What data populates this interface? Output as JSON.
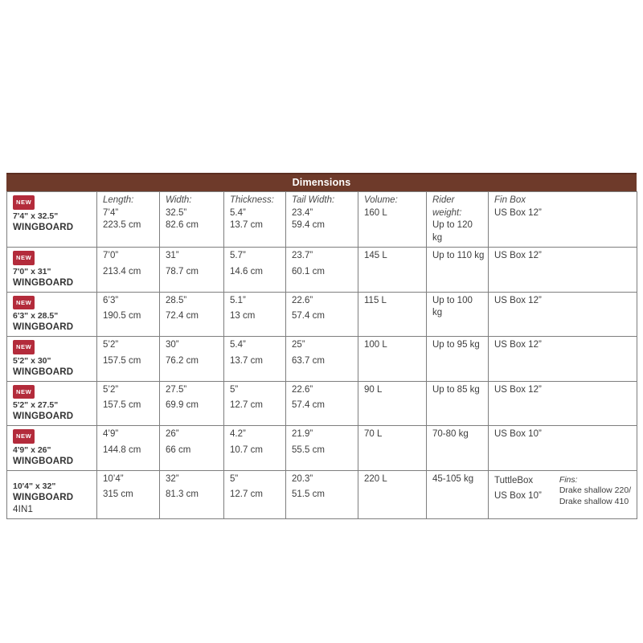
{
  "table": {
    "title": "Dimensions",
    "badge_label": "NEW",
    "columns": {
      "length": "Length:",
      "width": "Width:",
      "thickness": "Thickness:",
      "tail_width": "Tail Width:",
      "volume": "Volume:",
      "rider_weight": "Rider weight:",
      "fin_box": "Fin Box"
    },
    "rows": [
      {
        "is_new": true,
        "size": "7'4\" x 32.5\"",
        "model": "WINGBOARD",
        "model_suffix": "",
        "length_in": "7’4”",
        "length_cm": "223.5 cm",
        "width_in": "32.5”",
        "width_cm": "82.6 cm",
        "thickness_in": "5.4”",
        "thickness_cm": "13.7 cm",
        "tail_in": "23.4”",
        "tail_cm": "59.4 cm",
        "volume": "160 L",
        "rider_weight": "Up to 120 kg",
        "fin_box": [
          "US Box 12”"
        ]
      },
      {
        "is_new": true,
        "size": "7'0\" x 31\"",
        "model": "WINGBOARD",
        "model_suffix": "",
        "length_in": "7’0”",
        "length_cm": "213.4 cm",
        "width_in": "31”",
        "width_cm": "78.7 cm",
        "thickness_in": "5.7”",
        "thickness_cm": "14.6 cm",
        "tail_in": "23.7”",
        "tail_cm": "60.1 cm",
        "volume": "145 L",
        "rider_weight": "Up to 110 kg",
        "fin_box": [
          "US Box 12”"
        ]
      },
      {
        "is_new": true,
        "size": "6'3\" x 28.5\"",
        "model": "WINGBOARD",
        "model_suffix": "",
        "length_in": "6’3”",
        "length_cm": "190.5 cm",
        "width_in": "28.5”",
        "width_cm": "72.4 cm",
        "thickness_in": "5.1”",
        "thickness_cm": "13 cm",
        "tail_in": "22.6”",
        "tail_cm": "57.4 cm",
        "volume": "115 L",
        "rider_weight": "Up to 100 kg",
        "fin_box": [
          "US Box 12”"
        ]
      },
      {
        "is_new": true,
        "size": "5'2\" x 30\"",
        "model": "WINGBOARD",
        "model_suffix": "",
        "length_in": "5’2”",
        "length_cm": "157.5 cm",
        "width_in": "30”",
        "width_cm": "76.2 cm",
        "thickness_in": "5.4”",
        "thickness_cm": "13.7 cm",
        "tail_in": "25”",
        "tail_cm": "63.7 cm",
        "volume": "100 L",
        "rider_weight": "Up to 95 kg",
        "fin_box": [
          "US Box 12”"
        ]
      },
      {
        "is_new": true,
        "size": "5'2\" x 27.5\"",
        "model": "WINGBOARD",
        "model_suffix": "",
        "length_in": "5’2”",
        "length_cm": "157.5 cm",
        "width_in": "27.5”",
        "width_cm": "69.9 cm",
        "thickness_in": "5”",
        "thickness_cm": "12.7 cm",
        "tail_in": "22.6”",
        "tail_cm": "57.4 cm",
        "volume": "90 L",
        "rider_weight": "Up to 85 kg",
        "fin_box": [
          "US Box 12”"
        ]
      },
      {
        "is_new": true,
        "size": "4'9\" x 26\"",
        "model": "WINGBOARD",
        "model_suffix": "",
        "length_in": "4’9”",
        "length_cm": "144.8 cm",
        "width_in": "26”",
        "width_cm": "66 cm",
        "thickness_in": "4.2”",
        "thickness_cm": "10.7 cm",
        "tail_in": "21.9”",
        "tail_cm": "55.5 cm",
        "volume": "70 L",
        "rider_weight": "70-80 kg",
        "fin_box": [
          "US Box 10”"
        ]
      },
      {
        "is_new": false,
        "size": "10'4\" x 32\"",
        "model": "WINGBOARD",
        "model_suffix": "4IN1",
        "length_in": "10’4”",
        "length_cm": "315 cm",
        "width_in": "32”",
        "width_cm": "81.3 cm",
        "thickness_in": "5”",
        "thickness_cm": "12.7 cm",
        "tail_in": "20.3”",
        "tail_cm": "51.5 cm",
        "volume": "220 L",
        "rider_weight": "45-105 kg",
        "fin_box": [
          "TuttleBox",
          "US Box 10”"
        ],
        "fins": {
          "label": "Fins:",
          "lines": [
            "Drake shallow 220/",
            "Drake shallow 410"
          ]
        }
      }
    ],
    "colors": {
      "header_bg": "#6e3a2a",
      "header_top_edge": "#5c2e21",
      "badge_bg": "#b32b3b",
      "grid_border": "#7e7e7e",
      "text": "#3d3d3d",
      "title_text": "#ffffff"
    }
  }
}
